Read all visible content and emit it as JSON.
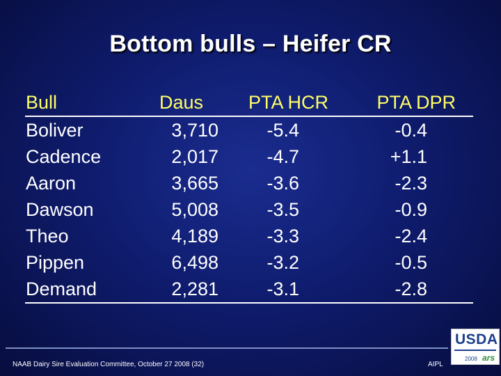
{
  "slide": {
    "title": "Bottom bulls – Heifer CR"
  },
  "table": {
    "headers": {
      "bull": "Bull",
      "daus": "Daus",
      "pta_hcr": "PTA HCR",
      "pta_dpr": "PTA DPR"
    },
    "rows": [
      {
        "bull": "Boliver",
        "daus": "3,710",
        "pta_hcr": "-5.4",
        "pta_dpr": "-0.4"
      },
      {
        "bull": "Cadence",
        "daus": "2,017",
        "pta_hcr": "-4.7",
        "pta_dpr": "+1.1"
      },
      {
        "bull": "Aaron",
        "daus": "3,665",
        "pta_hcr": "-3.6",
        "pta_dpr": "-2.3"
      },
      {
        "bull": "Dawson",
        "daus": "5,008",
        "pta_hcr": "-3.5",
        "pta_dpr": "-0.9"
      },
      {
        "bull": "Theo",
        "daus": "4,189",
        "pta_hcr": "-3.3",
        "pta_dpr": "-2.4"
      },
      {
        "bull": "Pippen",
        "daus": "6,498",
        "pta_hcr": "-3.2",
        "pta_dpr": "-0.5"
      },
      {
        "bull": "Demand",
        "daus": "2,281",
        "pta_hcr": "-3.1",
        "pta_dpr": "-2.8"
      }
    ]
  },
  "footer": {
    "text": "NAAB Dairy Sire Evaluation Committee, October 27 2008 (32)",
    "org": "AIPL"
  },
  "logo": {
    "name": "USDA",
    "year": "2008",
    "ars": "ars"
  },
  "colors": {
    "background": "#0f1c6e",
    "header_text": "#ffff66",
    "body_text": "#ffffff"
  }
}
